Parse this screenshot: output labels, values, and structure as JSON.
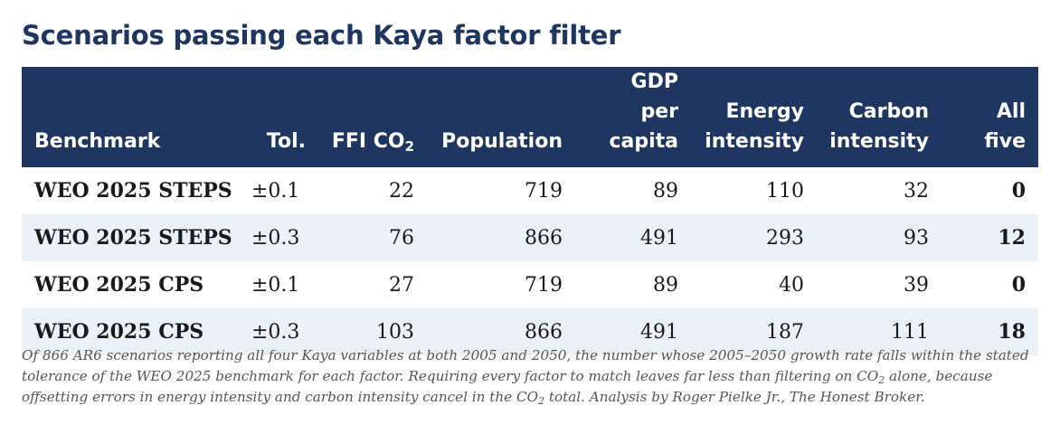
{
  "title": "Scenarios passing each Kaya factor filter",
  "columns": {
    "benchmark": "Benchmark",
    "tol": "Tol.",
    "ffi_main": "FFI CO",
    "ffi_sub": "2",
    "population": "Population",
    "gdp_line1": "GDP per",
    "gdp_line2": "capita",
    "energy_line1": "Energy",
    "energy_line2": "intensity",
    "carbon_line1": "Carbon",
    "carbon_line2": "intensity",
    "all": "All five"
  },
  "rows": [
    {
      "benchmark": "WEO 2025 STEPS",
      "tol": "±0.1",
      "ffi": "22",
      "population": "719",
      "gdp": "89",
      "energy": "110",
      "carbon": "32",
      "all": "0"
    },
    {
      "benchmark": "WEO 2025 STEPS",
      "tol": "±0.3",
      "ffi": "76",
      "population": "866",
      "gdp": "491",
      "energy": "293",
      "carbon": "93",
      "all": "12"
    },
    {
      "benchmark": "WEO 2025 CPS",
      "tol": "±0.1",
      "ffi": "27",
      "population": "719",
      "gdp": "89",
      "energy": "40",
      "carbon": "39",
      "all": "0"
    },
    {
      "benchmark": "WEO 2025 CPS",
      "tol": "±0.3",
      "ffi": "103",
      "population": "866",
      "gdp": "491",
      "energy": "187",
      "carbon": "111",
      "all": "18"
    }
  ],
  "note": {
    "part1": "Of 866 AR6 scenarios reporting all four Kaya variables at both 2005 and 2050, the number whose 2005–2050 growth rate falls within the stated tolerance of the WEO 2025 benchmark for each factor. Requiring every factor to match leaves far less than filtering on CO",
    "sub1": "2",
    "part2": " alone, because offsetting errors in energy intensity and carbon intensity cancel in the CO",
    "sub2": "2",
    "part3": " total. Analysis by Roger Pielke Jr., The Honest Broker."
  }
}
